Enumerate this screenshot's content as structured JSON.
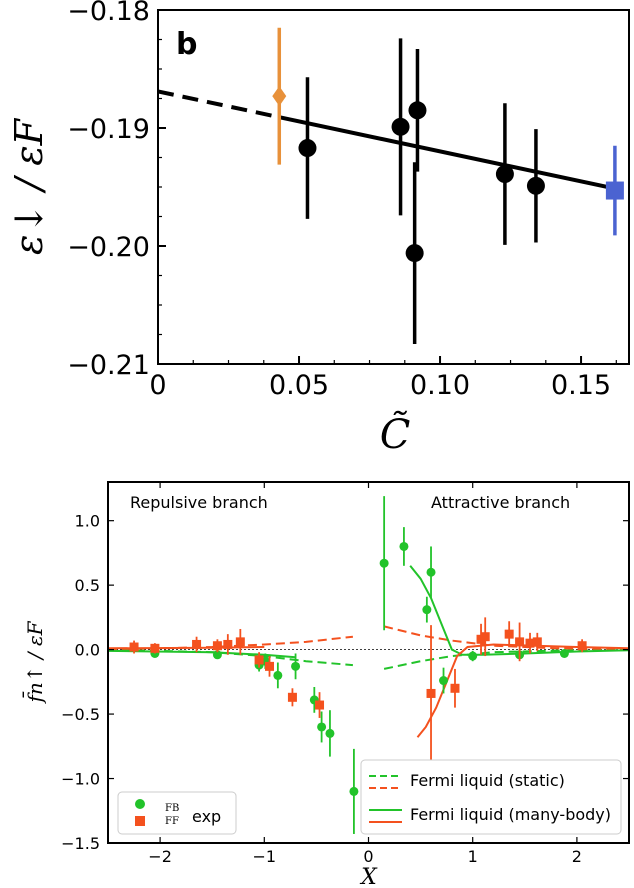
{
  "chart_data": [
    {
      "type": "scatter",
      "panel_label": "b",
      "xlabel": "C̃",
      "ylabel": "ε↓ / εF",
      "xlim": [
        0,
        0.167
      ],
      "ylim": [
        -0.21,
        -0.18
      ],
      "xticks": [
        "0",
        "0.05",
        "0.10",
        "0.15"
      ],
      "xtick_values": [
        0,
        0.05,
        0.1,
        0.15
      ],
      "yticks": [
        "−0.18",
        "−0.19",
        "−0.20",
        "−0.21"
      ],
      "ytick_values": [
        -0.18,
        -0.19,
        -0.2,
        -0.21
      ],
      "series": [
        {
          "marker": "circle",
          "color": "#000000",
          "points": [
            {
              "x": 0.053,
              "y": -0.1917,
              "err": 0.006
            },
            {
              "x": 0.086,
              "y": -0.1899,
              "err": 0.0075
            },
            {
              "x": 0.091,
              "y": -0.2006,
              "err": 0.0077
            },
            {
              "x": 0.092,
              "y": -0.1885,
              "err": 0.0052
            },
            {
              "x": 0.123,
              "y": -0.1939,
              "err": 0.006
            },
            {
              "x": 0.134,
              "y": -0.1949,
              "err": 0.0048
            }
          ]
        },
        {
          "marker": "diamond",
          "color": "#e8913a",
          "points": [
            {
              "x": 0.043,
              "y": -0.1873,
              "err": 0.0058
            }
          ]
        },
        {
          "marker": "square",
          "color": "#4b63d1",
          "points": [
            {
              "x": 0.162,
              "y": -0.1953,
              "err": 0.0038
            }
          ]
        }
      ],
      "fit": {
        "slope": -0.0508,
        "intercept": -0.1869,
        "dashed_x": [
          0,
          0.043
        ],
        "solid_x": [
          0.043,
          0.162
        ]
      }
    },
    {
      "type": "scatter",
      "xlabel": "X",
      "ylabel": "f̄n↑ / εF",
      "xlim": [
        -2.5,
        2.5
      ],
      "ylim": [
        -1.5,
        1.3
      ],
      "xticks": [
        "−2",
        "−1",
        "0",
        "1",
        "2"
      ],
      "xtick_values": [
        -2,
        -1,
        0,
        1,
        2
      ],
      "yticks": [
        "1.0",
        "0.5",
        "0.0",
        "−0.5",
        "−1.0",
        "−1.5"
      ],
      "ytick_values": [
        1.0,
        0.5,
        0.0,
        -0.5,
        -1.0,
        -1.5
      ],
      "annotations": [
        "Repulsive branch",
        "Attractive branch"
      ],
      "colors": {
        "fb": "#22c32a",
        "ff": "#f4511e"
      },
      "series": [
        {
          "name": "FB exp",
          "marker": "circle",
          "color": "#22c32a",
          "points": [
            {
              "x": -2.05,
              "y": -0.03,
              "err": 0.03
            },
            {
              "x": -1.45,
              "y": -0.04,
              "err": 0.03
            },
            {
              "x": -1.05,
              "y": -0.12,
              "err": 0.05
            },
            {
              "x": -0.99,
              "y": -0.09,
              "err": 0.06
            },
            {
              "x": -0.87,
              "y": -0.2,
              "err": 0.1
            },
            {
              "x": -0.7,
              "y": -0.13,
              "err": 0.1
            },
            {
              "x": -0.52,
              "y": -0.39,
              "err": 0.1
            },
            {
              "x": -0.45,
              "y": -0.6,
              "err": 0.12
            },
            {
              "x": -0.37,
              "y": -0.65,
              "err": 0.18
            },
            {
              "x": -0.14,
              "y": -1.1,
              "err": 0.33
            },
            {
              "x": 0.15,
              "y": 0.67,
              "err": 0.52
            },
            {
              "x": 0.34,
              "y": 0.8,
              "err": 0.15
            },
            {
              "x": 0.56,
              "y": 0.31,
              "err": 0.1
            },
            {
              "x": 0.6,
              "y": 0.6,
              "err": 0.2
            },
            {
              "x": 0.72,
              "y": -0.24,
              "err": 0.1
            },
            {
              "x": 1.0,
              "y": -0.05,
              "err": 0.04
            },
            {
              "x": 1.45,
              "y": -0.04,
              "err": 0.03
            },
            {
              "x": 1.88,
              "y": -0.03,
              "err": 0.03
            }
          ]
        },
        {
          "name": "FF exp",
          "marker": "square",
          "color": "#f4511e",
          "points": [
            {
              "x": -2.25,
              "y": 0.02,
              "err": 0.05
            },
            {
              "x": -2.05,
              "y": 0.01,
              "err": 0.04
            },
            {
              "x": -1.65,
              "y": 0.04,
              "err": 0.06
            },
            {
              "x": -1.45,
              "y": 0.03,
              "err": 0.05
            },
            {
              "x": -1.35,
              "y": 0.04,
              "err": 0.08
            },
            {
              "x": -1.23,
              "y": 0.06,
              "err": 0.1
            },
            {
              "x": -1.05,
              "y": -0.08,
              "err": 0.06
            },
            {
              "x": -0.95,
              "y": -0.13,
              "err": 0.08
            },
            {
              "x": -0.73,
              "y": -0.37,
              "err": 0.07
            },
            {
              "x": -0.47,
              "y": -0.43,
              "err": 0.1
            },
            {
              "x": 0.6,
              "y": -0.34,
              "err": 0.53
            },
            {
              "x": 0.83,
              "y": -0.3,
              "err": 0.15
            },
            {
              "x": 1.08,
              "y": 0.08,
              "err": 0.12
            },
            {
              "x": 1.12,
              "y": 0.1,
              "err": 0.15
            },
            {
              "x": 1.35,
              "y": 0.12,
              "err": 0.1
            },
            {
              "x": 1.45,
              "y": 0.06,
              "err": 0.15
            },
            {
              "x": 1.55,
              "y": 0.05,
              "err": 0.08
            },
            {
              "x": 1.62,
              "y": 0.06,
              "err": 0.07
            },
            {
              "x": 2.05,
              "y": 0.03,
              "err": 0.05
            }
          ]
        }
      ],
      "curves": [
        {
          "name": "FB static",
          "style": "dashed",
          "color": "#22c32a",
          "x": [
            -2.5,
            -2.0,
            -1.5,
            -1.0,
            -0.6,
            -0.15
          ],
          "y": [
            -0.005,
            -0.01,
            -0.02,
            -0.05,
            -0.09,
            -0.12
          ]
        },
        {
          "name": "FF static",
          "style": "dashed",
          "color": "#f4511e",
          "x": [
            -2.5,
            -2.0,
            -1.5,
            -1.0,
            -0.6,
            -0.15
          ],
          "y": [
            0.005,
            0.01,
            0.02,
            0.04,
            0.06,
            0.1
          ]
        },
        {
          "name": "FB static right",
          "style": "dashed",
          "color": "#22c32a",
          "x": [
            0.15,
            0.5,
            0.8,
            1.2,
            1.8,
            2.5
          ],
          "y": [
            -0.15,
            -0.09,
            -0.05,
            -0.02,
            -0.008,
            -0.003
          ]
        },
        {
          "name": "FF static right",
          "style": "dashed",
          "color": "#f4511e",
          "x": [
            0.15,
            0.5,
            0.8,
            1.2,
            1.8,
            2.5
          ],
          "y": [
            0.18,
            0.11,
            0.07,
            0.03,
            0.01,
            0.005
          ]
        },
        {
          "name": "FB many-body",
          "style": "solid",
          "color": "#22c32a",
          "x": [
            -2.5,
            -1.5,
            -1.0,
            -0.7
          ],
          "y": [
            -0.01,
            -0.02,
            -0.04,
            -0.06
          ]
        },
        {
          "name": "FB many-body right",
          "style": "solid",
          "color": "#22c32a",
          "x": [
            0.4,
            0.5,
            0.6,
            0.7,
            0.8,
            0.9,
            1.1,
            1.5,
            2.0,
            2.5
          ],
          "y": [
            0.65,
            0.55,
            0.4,
            0.2,
            0.0,
            -0.04,
            -0.04,
            -0.03,
            -0.015,
            -0.005
          ]
        },
        {
          "name": "FF many-body left",
          "style": "solid",
          "color": "#f4511e",
          "x": [
            -2.5,
            -1.5,
            -1.0
          ],
          "y": [
            0.01,
            0.015,
            0.02
          ]
        },
        {
          "name": "FF many-body right",
          "style": "solid",
          "color": "#f4511e",
          "x": [
            0.47,
            0.55,
            0.65,
            0.75,
            0.85,
            0.95,
            1.2,
            1.6,
            2.0,
            2.5
          ],
          "y": [
            -0.68,
            -0.6,
            -0.45,
            -0.25,
            -0.05,
            0.02,
            0.04,
            0.03,
            0.02,
            0.01
          ]
        }
      ],
      "legend_left": {
        "sup": "FB",
        "sub": "FF",
        "label": "exp",
        "placement": "lower-left"
      },
      "legend_right": {
        "entries": [
          "Fermi liquid (static)",
          "Fermi liquid (many-body)"
        ],
        "placement": "lower-right"
      }
    }
  ]
}
